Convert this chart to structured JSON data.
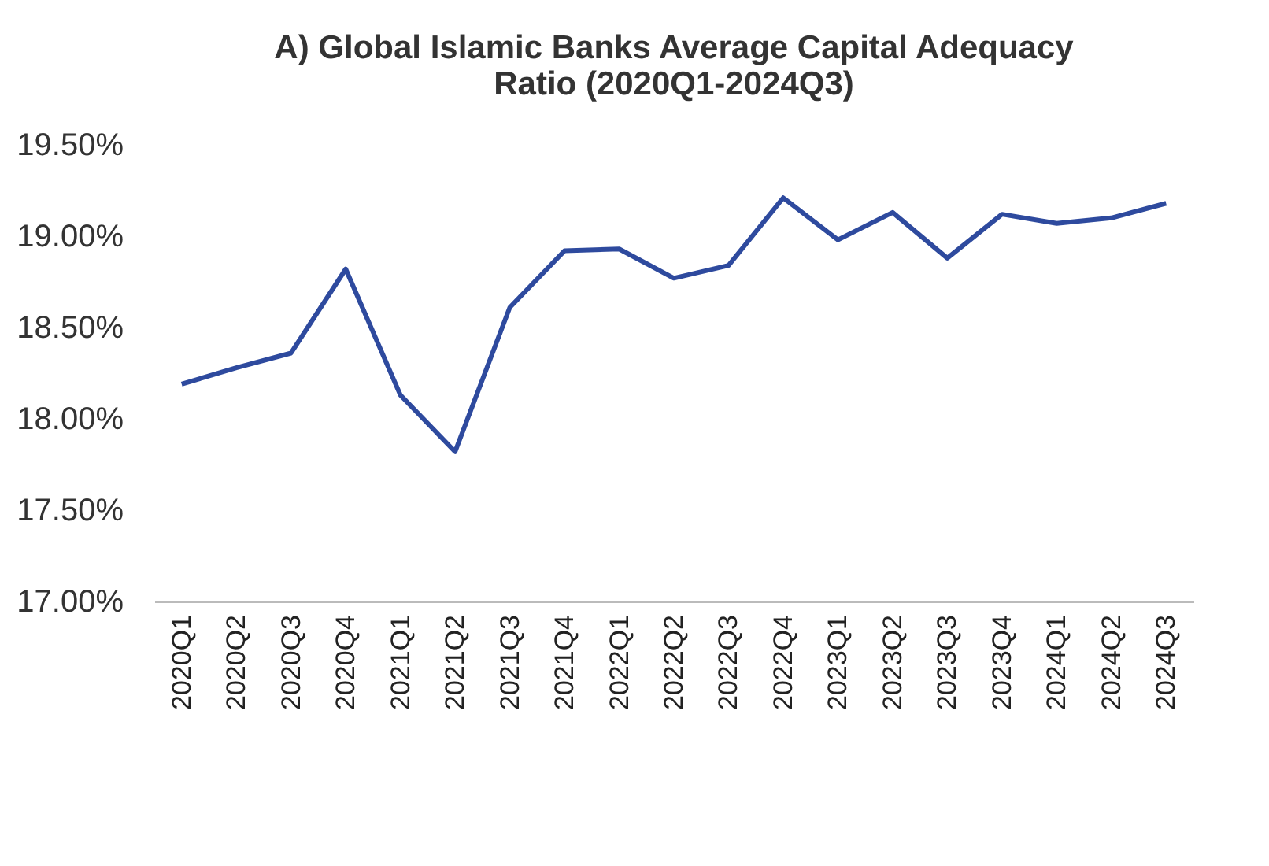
{
  "chart_data": {
    "type": "line",
    "title": "A) Global Islamic Banks Average Capital Adequacy Ratio (2020Q1-2024Q3)",
    "categories": [
      "2020Q1",
      "2020Q2",
      "2020Q3",
      "2020Q4",
      "2021Q1",
      "2021Q2",
      "2021Q3",
      "2021Q4",
      "2022Q1",
      "2022Q2",
      "2022Q3",
      "2022Q4",
      "2023Q1",
      "2023Q2",
      "2023Q3",
      "2023Q4",
      "2024Q1",
      "2024Q2",
      "2024Q3"
    ],
    "series": [
      {
        "color": "#2e4a9e",
        "values": [
          18.19,
          18.28,
          18.36,
          18.82,
          18.13,
          17.82,
          18.61,
          18.92,
          18.93,
          18.77,
          18.84,
          19.21,
          18.98,
          19.13,
          18.88,
          19.12,
          19.07,
          19.1,
          19.18
        ]
      }
    ],
    "ylim": [
      17,
      19.5
    ],
    "yticks": [
      {
        "value": 17,
        "label": "17.00%"
      },
      {
        "value": 17.5,
        "label": "17.50%"
      },
      {
        "value": 18,
        "label": "18.00%"
      },
      {
        "value": 18.5,
        "label": "18.50%"
      },
      {
        "value": 19,
        "label": "19.00%"
      },
      {
        "value": 19.5,
        "label": "19.50%"
      }
    ],
    "grid": false,
    "marker": "none",
    "line_style": "solid"
  }
}
